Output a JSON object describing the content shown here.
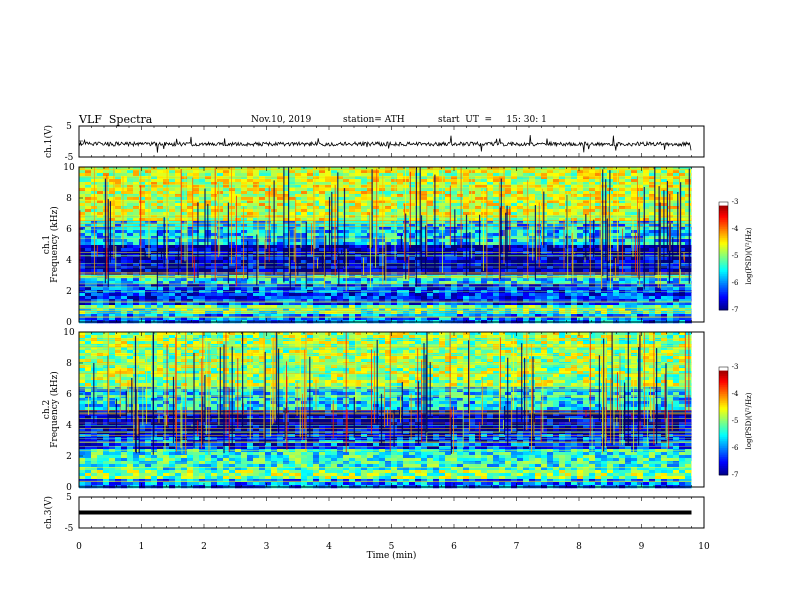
{
  "header": {
    "title": "VLF  Spectra",
    "date": "Nov.10, 2019",
    "station": "station= ATH",
    "start": "start  UT  =     15: 30: 1"
  },
  "chart_data": [
    {
      "type": "line",
      "panel": "ch1-waveform",
      "ylabel": "ch.1(V)",
      "yticks": [
        "5",
        "-5"
      ],
      "ylim": [
        -5,
        5
      ],
      "xlim": [
        0,
        10
      ],
      "trace_end_min": 9.8,
      "level_V": -0.8,
      "line_color": "#000000"
    },
    {
      "type": "heatmap",
      "panel": "ch1-spectrogram",
      "ylabel": "Frequency  (kHz)",
      "channel_label": "ch.1",
      "yticks": [
        "0",
        "2",
        "4",
        "6",
        "8",
        "10"
      ],
      "ylim": [
        0,
        10
      ],
      "xlim": [
        0,
        10
      ],
      "data_end_min": 9.8,
      "colorbar": {
        "label": "log(PSD)(V²/Hz)",
        "ticks": [
          "-3",
          "-4",
          "-5",
          "-6",
          "-7"
        ],
        "range": [
          -7,
          -3
        ]
      },
      "bands_kHz": [
        {
          "from": 0.0,
          "to": 0.5,
          "level": -6.0
        },
        {
          "from": 0.5,
          "to": 1.0,
          "level": -5.2
        },
        {
          "from": 1.0,
          "to": 2.5,
          "level": -6.3
        },
        {
          "from": 2.5,
          "to": 3.0,
          "level": -5.6
        },
        {
          "from": 3.0,
          "to": 5.0,
          "level": -6.8
        },
        {
          "from": 5.0,
          "to": 6.5,
          "level": -5.7
        },
        {
          "from": 6.5,
          "to": 10.0,
          "level": -4.7
        }
      ]
    },
    {
      "type": "heatmap",
      "panel": "ch2-spectrogram",
      "ylabel": "Frequency  (kHz)",
      "channel_label": "ch.2",
      "yticks": [
        "0",
        "2",
        "4",
        "6",
        "8",
        "10"
      ],
      "ylim": [
        0,
        10
      ],
      "xlim": [
        0,
        10
      ],
      "data_end_min": 9.8,
      "colorbar": {
        "label": "log(PSD)(V²/Hz)",
        "ticks": [
          "-3",
          "-4",
          "-5",
          "-6",
          "-7"
        ],
        "range": [
          -7,
          -3
        ]
      },
      "bands_kHz": [
        {
          "from": 0.0,
          "to": 0.5,
          "level": -6.0
        },
        {
          "from": 0.5,
          "to": 1.0,
          "level": -5.0
        },
        {
          "from": 1.0,
          "to": 2.5,
          "level": -5.4
        },
        {
          "from": 2.5,
          "to": 3.5,
          "level": -6.3
        },
        {
          "from": 3.5,
          "to": 5.0,
          "level": -6.8
        },
        {
          "from": 5.0,
          "to": 6.5,
          "level": -5.6
        },
        {
          "from": 6.5,
          "to": 10.0,
          "level": -4.9
        }
      ]
    },
    {
      "type": "line",
      "panel": "ch3-waveform",
      "ylabel": "ch.3(V)",
      "yticks": [
        "5",
        "-5"
      ],
      "ylim": [
        -5,
        5
      ],
      "xlim": [
        0,
        10
      ],
      "xlabel": "Time  (min)",
      "xticks": [
        "0",
        "1",
        "2",
        "3",
        "4",
        "5",
        "6",
        "7",
        "8",
        "9",
        "10"
      ],
      "trace_end_min": 9.8,
      "level_V": 0,
      "line_color": "#000000"
    }
  ]
}
